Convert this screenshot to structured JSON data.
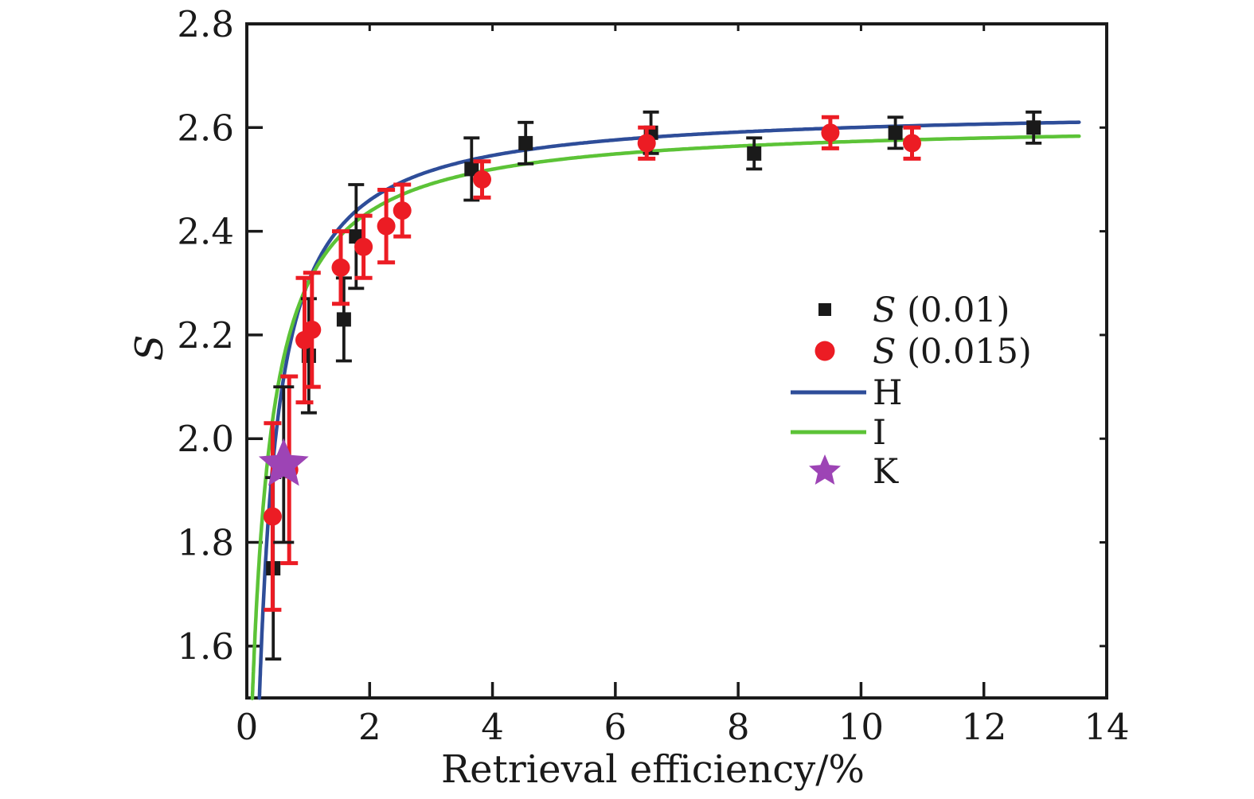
{
  "chart_data": {
    "type": "scatter",
    "title": "",
    "xlabel": "Retrieval efficiency/%",
    "ylabel": "S",
    "ylabel_italic": true,
    "xlim": [
      0,
      14
    ],
    "ylim": [
      1.5,
      2.8
    ],
    "xticks": [
      "0",
      "2",
      "4",
      "6",
      "8",
      "10",
      "12",
      "14"
    ],
    "xtick_values": [
      0,
      2,
      4,
      6,
      8,
      10,
      12,
      14
    ],
    "yticks": [
      "1.6",
      "1.8",
      "2.0",
      "2.2",
      "2.4",
      "2.6",
      "2.8"
    ],
    "ytick_values": [
      1.6,
      1.8,
      2.0,
      2.2,
      2.4,
      2.6,
      2.8
    ],
    "grid": false,
    "frame": "box-with-mirrored-ticks",
    "colors": {
      "line_H": "#2e4d99",
      "line_I": "#5cc337",
      "squares": "#1a1a1a",
      "circles": "#ec1c24",
      "star": "#9d44b5",
      "text": "#1a1a1a"
    },
    "series": [
      {
        "id": "H",
        "type": "line",
        "color": "#2e4d99",
        "width": 4.5,
        "fit": {
          "form": "y = A - B/(x + C)",
          "A": 2.638,
          "B": 0.379,
          "C": 0.128
        },
        "x_start": 0.205,
        "x_end": 13.55
      },
      {
        "id": "I",
        "type": "line",
        "color": "#5cc337",
        "width": 4.5,
        "fit": {
          "form": "y = A - B/(x + C)",
          "A": 2.612,
          "B": 0.394,
          "C": 0.264
        },
        "x_start": 0.09,
        "x_end": 13.55
      },
      {
        "id": "S_0.01",
        "type": "scatter",
        "marker": "square",
        "color": "#1a1a1a",
        "error_color": "#1a1a1a",
        "points": [
          {
            "x": 0.43,
            "y": 1.75,
            "err": 0.175
          },
          {
            "x": 1.01,
            "y": 2.16,
            "err": 0.11
          },
          {
            "x": 1.58,
            "y": 2.23,
            "err": 0.08
          },
          {
            "x": 1.78,
            "y": 2.39,
            "err": 0.1
          },
          {
            "x": 3.66,
            "y": 2.52,
            "err": 0.06
          },
          {
            "x": 4.54,
            "y": 2.57,
            "err": 0.04
          },
          {
            "x": 6.58,
            "y": 2.59,
            "err": 0.04
          },
          {
            "x": 8.26,
            "y": 2.55,
            "err": 0.03
          },
          {
            "x": 10.56,
            "y": 2.59,
            "err": 0.03
          },
          {
            "x": 12.81,
            "y": 2.6,
            "err": 0.03
          }
        ]
      },
      {
        "id": "S_0.015",
        "type": "scatter",
        "marker": "circle",
        "color": "#ec1c24",
        "error_color": "#ec1c24",
        "points": [
          {
            "x": 0.42,
            "y": 1.85,
            "err": 0.18
          },
          {
            "x": 0.69,
            "y": 1.94,
            "err": 0.18
          },
          {
            "x": 0.94,
            "y": 2.19,
            "err": 0.12
          },
          {
            "x": 1.06,
            "y": 2.21,
            "err": 0.11
          },
          {
            "x": 1.53,
            "y": 2.33,
            "err": 0.07
          },
          {
            "x": 1.9,
            "y": 2.37,
            "err": 0.06
          },
          {
            "x": 2.27,
            "y": 2.41,
            "err": 0.07
          },
          {
            "x": 2.53,
            "y": 2.44,
            "err": 0.05
          },
          {
            "x": 3.83,
            "y": 2.5,
            "err": 0.035
          },
          {
            "x": 6.51,
            "y": 2.57,
            "err": 0.03
          },
          {
            "x": 9.5,
            "y": 2.59,
            "err": 0.03
          },
          {
            "x": 10.83,
            "y": 2.57,
            "err": 0.03
          }
        ]
      },
      {
        "id": "K",
        "type": "scatter",
        "marker": "star",
        "color": "#9d44b5",
        "error_color": "#1a1a1a",
        "points": [
          {
            "x": 0.6,
            "y": 1.95,
            "err": 0.15
          }
        ]
      }
    ],
    "legend": {
      "position": "center-right",
      "items": [
        {
          "series": "S_0.01",
          "marker": "square",
          "color": "#1a1a1a",
          "label_parts": [
            {
              "text": "S",
              "italic": true
            },
            {
              "text": " (0.01)",
              "italic": false
            }
          ]
        },
        {
          "series": "S_0.015",
          "marker": "circle",
          "color": "#ec1c24",
          "label_parts": [
            {
              "text": "S",
              "italic": true
            },
            {
              "text": " (0.015)",
              "italic": false
            }
          ]
        },
        {
          "series": "H",
          "marker": "line",
          "color": "#2e4d99",
          "label_parts": [
            {
              "text": "H",
              "italic": false
            }
          ]
        },
        {
          "series": "I",
          "marker": "line",
          "color": "#5cc337",
          "label_parts": [
            {
              "text": "I",
              "italic": false
            }
          ]
        },
        {
          "series": "K",
          "marker": "star",
          "color": "#9d44b5",
          "label_parts": [
            {
              "text": "K",
              "italic": false
            }
          ]
        }
      ]
    }
  }
}
